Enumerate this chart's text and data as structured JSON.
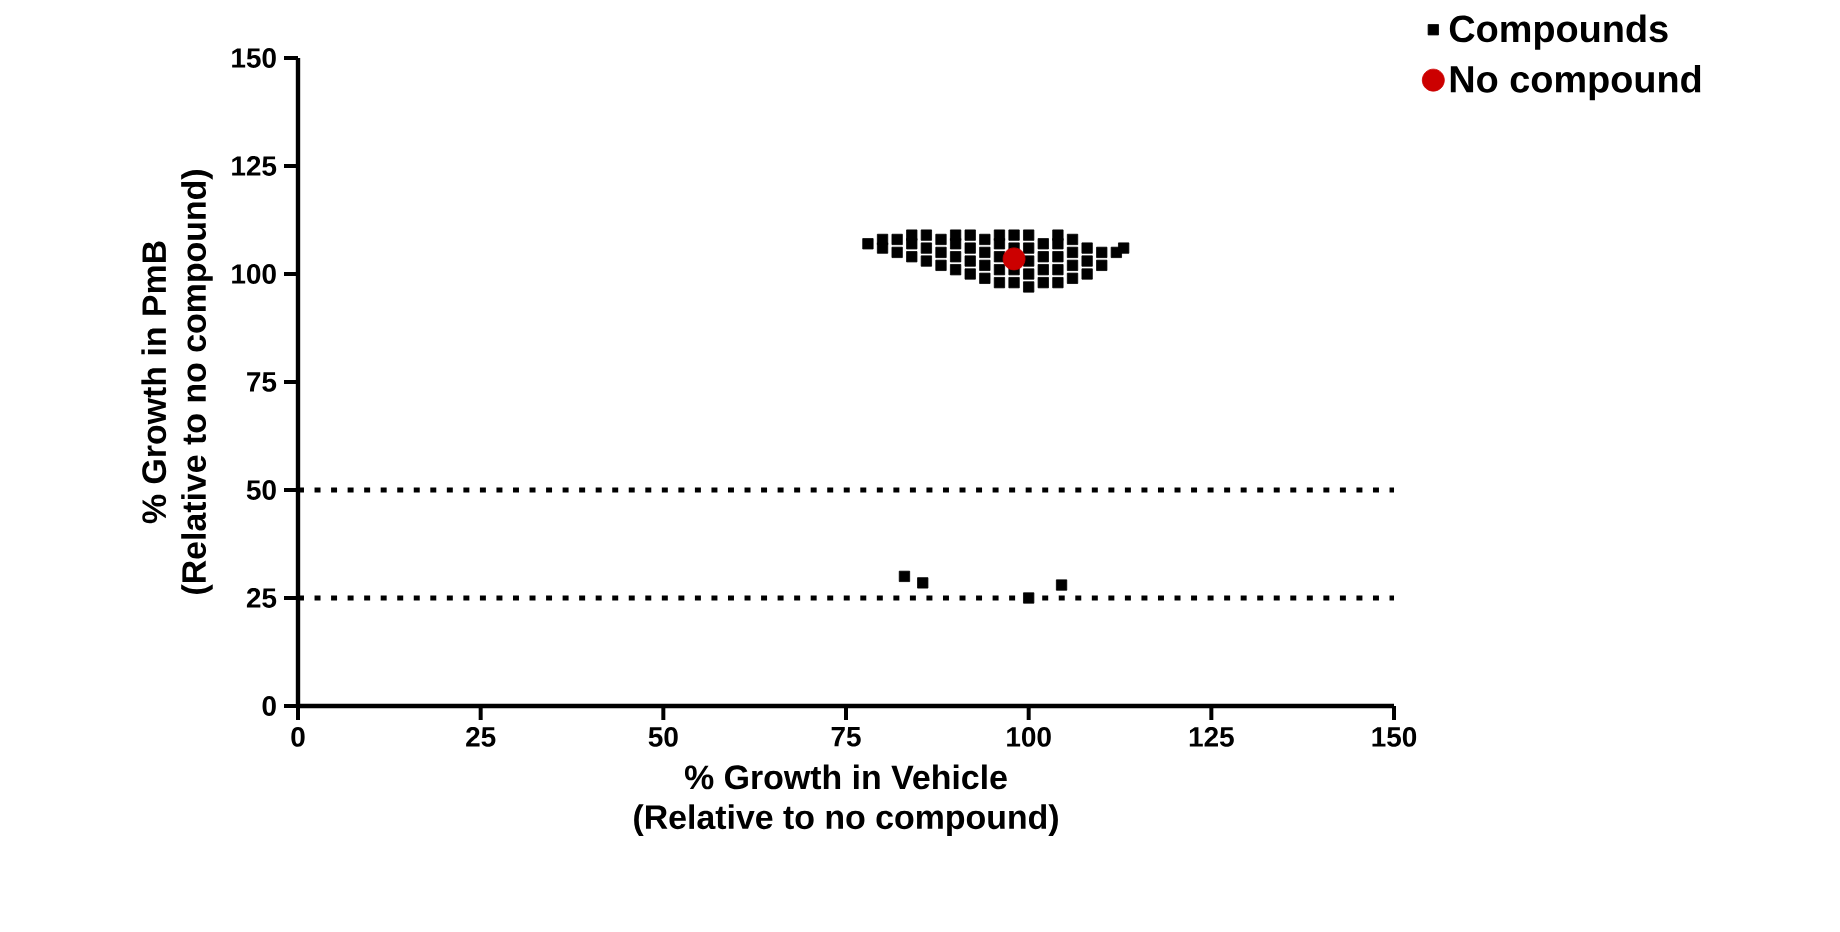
{
  "chart_data": {
    "type": "scatter",
    "xlabel": "% Growth in Vehicle\n(Relative to no compound)",
    "ylabel": "% Growth in PmB\n(Relative to no compound)",
    "xlim": [
      0,
      150
    ],
    "ylim": [
      0,
      150
    ],
    "xticks": [
      0,
      25,
      50,
      75,
      100,
      125,
      150
    ],
    "yticks": [
      0,
      25,
      50,
      75,
      100,
      125,
      150
    ],
    "grid": false,
    "legend": "top right",
    "ref_lines": [
      {
        "axis": "y",
        "value": 50,
        "color": "#000000",
        "line_style": "dotted"
      },
      {
        "axis": "y",
        "value": 25,
        "color": "#000000",
        "line_style": "dotted"
      }
    ],
    "series": [
      {
        "name": "Compounds",
        "color": "#000000",
        "marker": "square",
        "x": [
          78,
          80,
          80,
          82,
          82,
          84,
          84,
          84,
          86,
          86,
          86,
          88,
          88,
          88,
          90,
          90,
          90,
          90,
          92,
          92,
          92,
          92,
          94,
          94,
          94,
          94,
          96,
          96,
          96,
          96,
          96,
          98,
          98,
          98,
          98,
          100,
          100,
          100,
          100,
          100,
          102,
          102,
          102,
          102,
          104,
          104,
          104,
          104,
          104,
          106,
          106,
          106,
          106,
          108,
          108,
          108,
          110,
          110,
          112,
          113,
          83,
          85.5,
          100,
          104.5
        ],
        "values": [
          107,
          106,
          108,
          105,
          108,
          104,
          107,
          109,
          103,
          106,
          109,
          102,
          105,
          108,
          101,
          104,
          107,
          109,
          100,
          103,
          106,
          109,
          99,
          102,
          105,
          108,
          98,
          101,
          104,
          107,
          109,
          98,
          101,
          106,
          109,
          97,
          100,
          103,
          106,
          109,
          98,
          101,
          104,
          107,
          98,
          101,
          104,
          107,
          109,
          99,
          102,
          105,
          108,
          100,
          103,
          106,
          102,
          105,
          105,
          106,
          30,
          28.5,
          25,
          28
        ]
      },
      {
        "name": "No compound",
        "color": "#cc0000",
        "marker": "circle",
        "x": [
          98
        ],
        "values": [
          103.5
        ]
      }
    ]
  }
}
